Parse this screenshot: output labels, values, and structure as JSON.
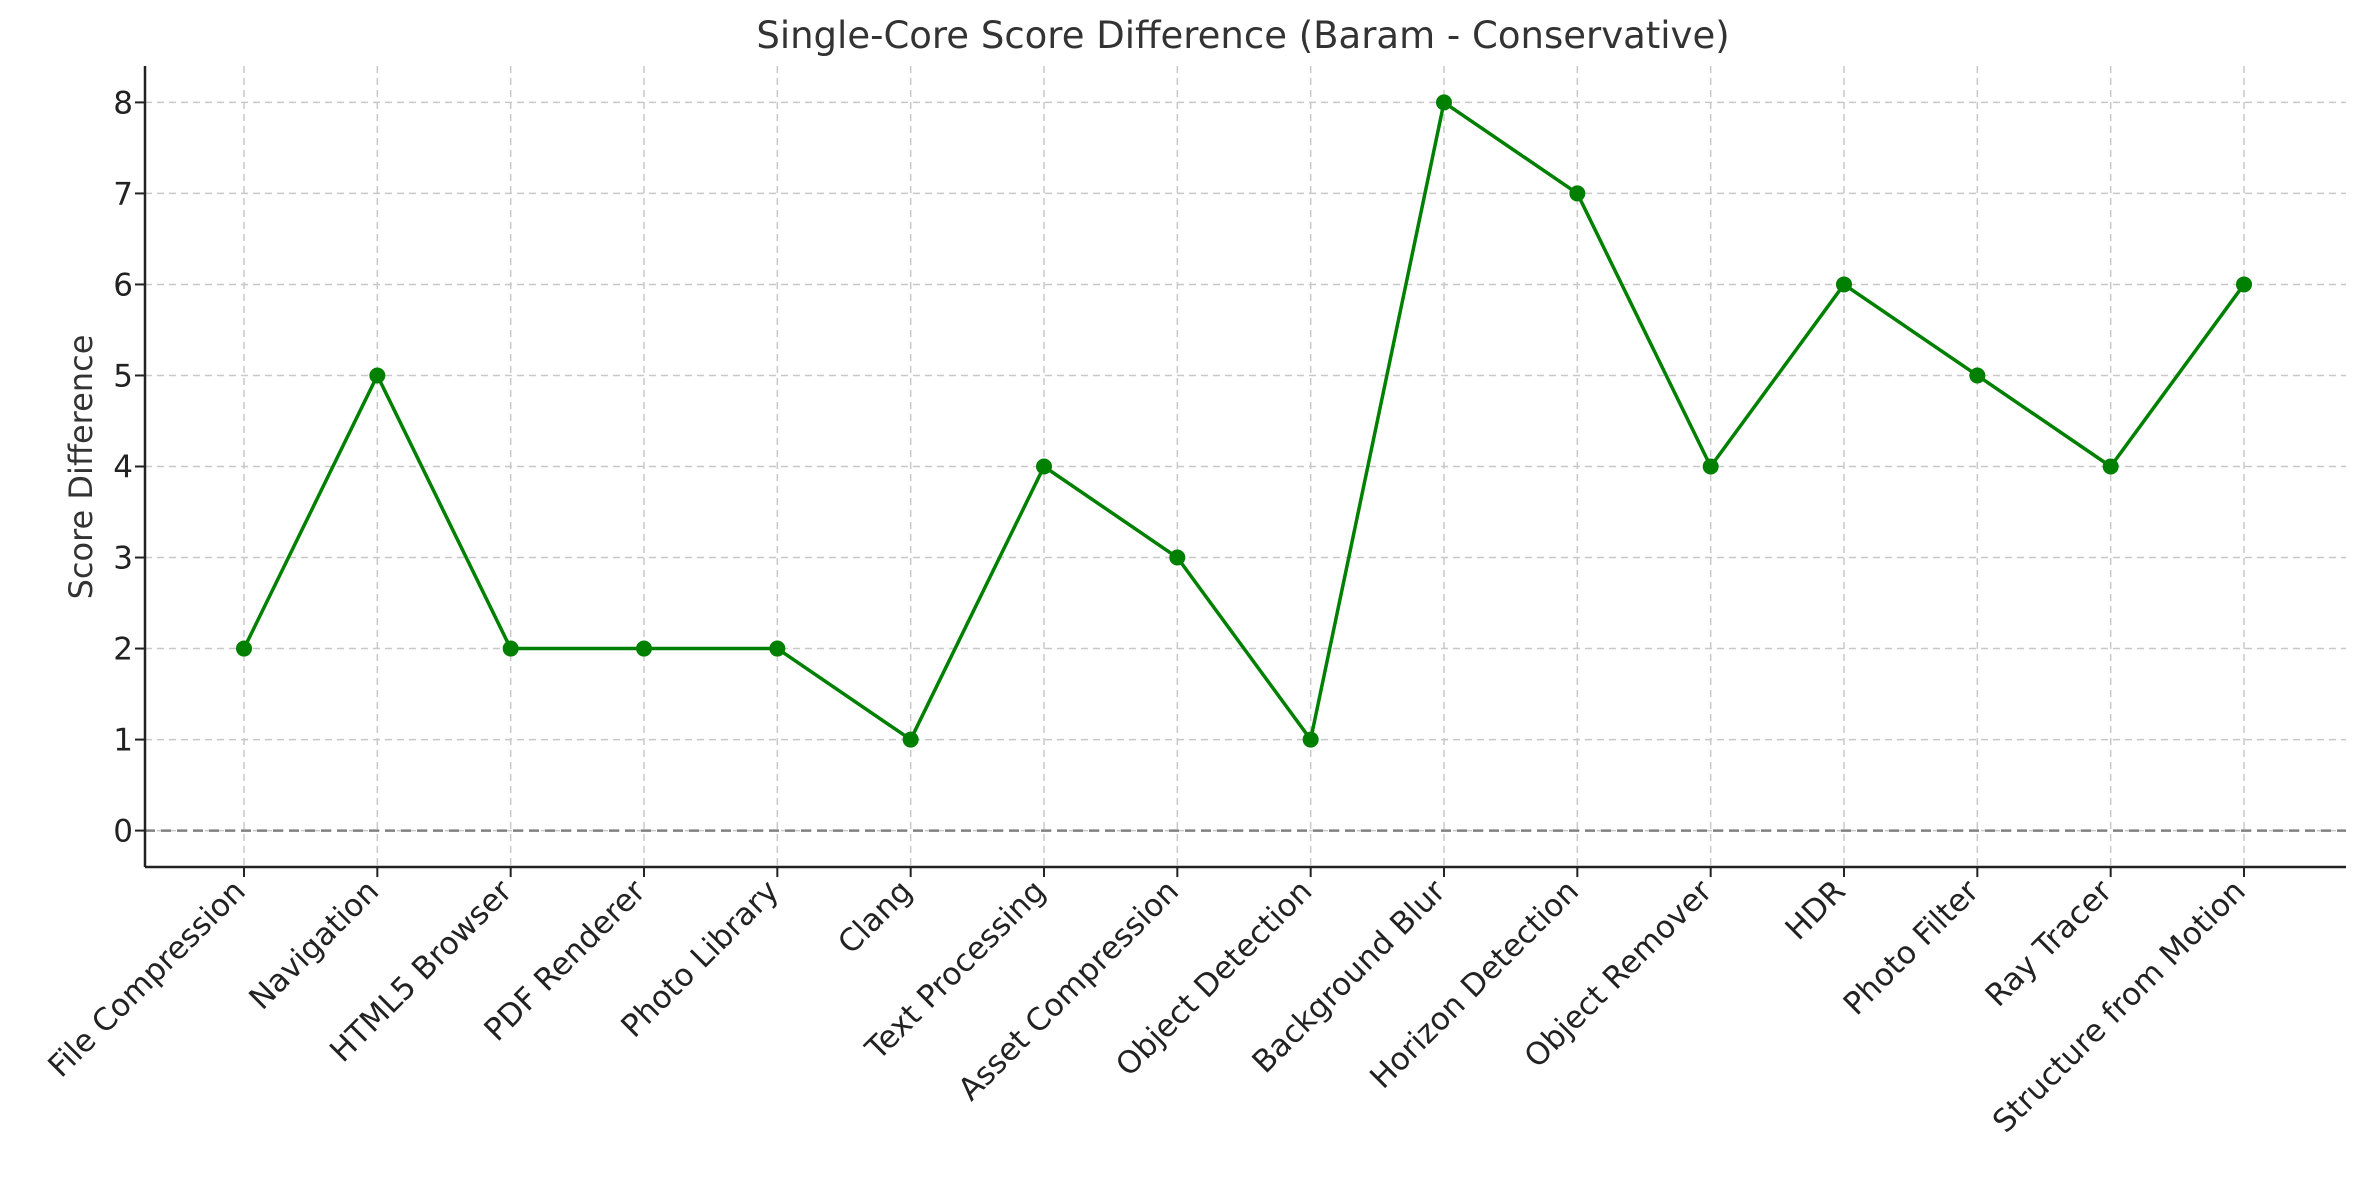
{
  "chart_data": {
    "type": "line",
    "title": "Single-Core Score Difference (Baram - Conservative)",
    "xlabel": "",
    "ylabel": "Score Difference",
    "categories": [
      "File Compression",
      "Navigation",
      "HTML5 Browser",
      "PDF Renderer",
      "Photo Library",
      "Clang",
      "Text Processing",
      "Asset Compression",
      "Object Detection",
      "Background Blur",
      "Horizon Detection",
      "Object Remover",
      "HDR",
      "Photo Filter",
      "Ray Tracer",
      "Structure from Motion"
    ],
    "values": [
      2,
      5,
      2,
      2,
      2,
      1,
      4,
      3,
      1,
      8,
      7,
      4,
      6,
      5,
      4,
      6
    ],
    "ylim": [
      -0.4,
      8.4
    ],
    "yticks": [
      0,
      1,
      2,
      3,
      4,
      5,
      6,
      7,
      8
    ],
    "reference_line": 0,
    "grid": true,
    "line_color": "#008000",
    "reference_color": "#808080"
  }
}
